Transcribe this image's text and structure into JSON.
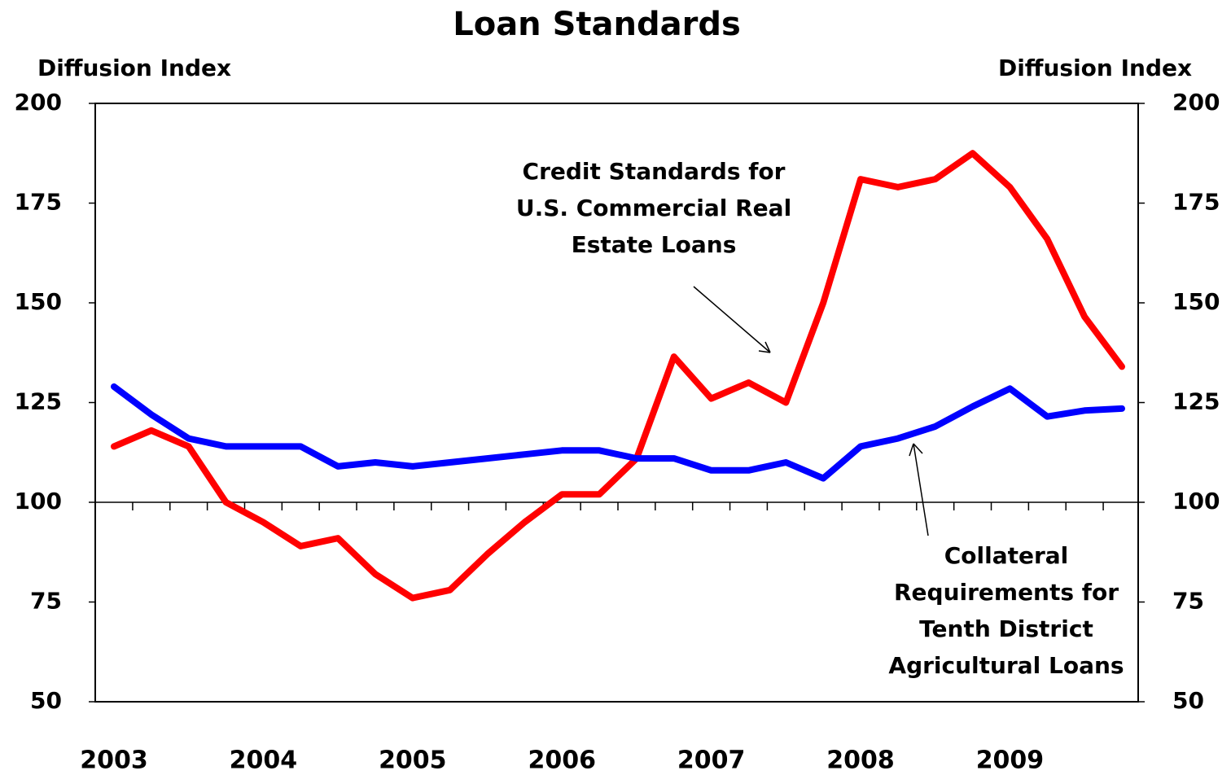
{
  "chart_data": {
    "type": "line",
    "title": "Loan Standards",
    "y_label": "Diffusion  Index",
    "y2_label": "Diffusion  Index",
    "categories": [
      "2003",
      null,
      null,
      null,
      "2004",
      null,
      null,
      null,
      "2005",
      null,
      null,
      null,
      "2006",
      null,
      null,
      null,
      "2007",
      null,
      null,
      null,
      "2008",
      null,
      null,
      null,
      "2009",
      null,
      null,
      null
    ],
    "series": [
      {
        "name": "Credit Standards for U.S. Commercial Real Estate Loans",
        "color": "#ff0000",
        "values": [
          114,
          118,
          114,
          100,
          95,
          89,
          91,
          82,
          76,
          78,
          87,
          95,
          102,
          102,
          111,
          136.5,
          126,
          130,
          125,
          150,
          181,
          179,
          181,
          187.5,
          179,
          166,
          146.5,
          134
        ]
      },
      {
        "name": "Collateral Requirements for Tenth District Agricultural Loans",
        "color": "#0000ff",
        "values": [
          129,
          122,
          116,
          114,
          114,
          114,
          109,
          110,
          109,
          110,
          111,
          112,
          113,
          113,
          111,
          111,
          108,
          108,
          110,
          106,
          114,
          116,
          119,
          124,
          128.5,
          121.5,
          123,
          123.5
        ]
      }
    ],
    "annotations": [
      {
        "lines": [
          "Credit Standards for",
          "U.S. Commercial  Real",
          "Estate Loans"
        ]
      },
      {
        "lines": [
          "Collateral",
          "Requirements for",
          "Tenth District",
          "Agricultural Loans"
        ]
      }
    ],
    "ylim": [
      50,
      200
    ],
    "yticks": [
      50,
      75,
      100,
      125,
      150,
      175,
      200
    ],
    "y2lim": [
      50,
      200
    ],
    "y2ticks": [
      50,
      75,
      100,
      125,
      150,
      175,
      200
    ],
    "axis_crosses_at": 100
  }
}
